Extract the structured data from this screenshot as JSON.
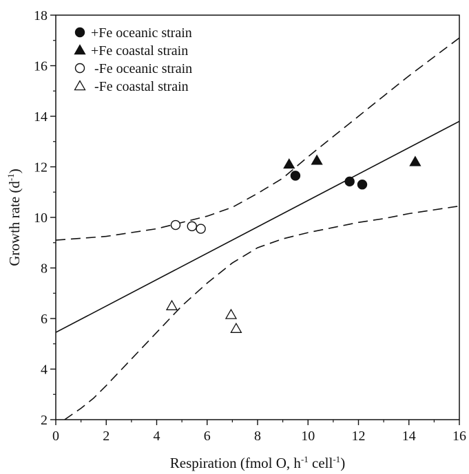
{
  "chart_data": {
    "type": "scatter",
    "xlabel": "Respiration (fmol O, h-1 cell-1)",
    "ylabel": "Growth rate (d-1)",
    "xlabel_parts": {
      "main": "Respiration (fmol O, h",
      "sup1": "-1",
      "mid": " cell",
      "sup2": "-1",
      "end": ")"
    },
    "ylabel_parts": {
      "main": "Growth rate (d",
      "sup": "-1",
      "end": ")"
    },
    "xlim": [
      0,
      16
    ],
    "ylim": [
      2,
      18
    ],
    "xticks": [
      0,
      2,
      4,
      6,
      8,
      10,
      12,
      14,
      16
    ],
    "yticks": [
      2,
      4,
      6,
      8,
      10,
      12,
      14,
      16,
      18
    ],
    "legend_position": "top-left",
    "grid": false,
    "series": [
      {
        "name": "+Fe oceanic strain",
        "marker": "circle",
        "filled": true,
        "points": [
          [
            9.5,
            11.65
          ],
          [
            11.65,
            11.42
          ],
          [
            12.15,
            11.3
          ]
        ]
      },
      {
        "name": "+Fe coastal strain",
        "marker": "triangle",
        "filled": true,
        "points": [
          [
            9.25,
            12.1
          ],
          [
            10.35,
            12.25
          ],
          [
            14.25,
            12.2
          ]
        ]
      },
      {
        "name": "-Fe oceanic strain",
        "marker": "circle",
        "filled": false,
        "points": [
          [
            4.75,
            9.7
          ],
          [
            5.4,
            9.65
          ],
          [
            5.75,
            9.55
          ]
        ]
      },
      {
        "name": "-Fe coastal strain",
        "marker": "triangle",
        "filled": false,
        "points": [
          [
            4.6,
            6.5
          ],
          [
            6.95,
            6.15
          ],
          [
            7.15,
            5.6
          ]
        ]
      }
    ],
    "regression_line": {
      "style": "solid",
      "points": [
        [
          0,
          5.45
        ],
        [
          16,
          13.8
        ]
      ]
    },
    "confidence_upper": {
      "style": "dashed",
      "points": [
        [
          0,
          9.1
        ],
        [
          2,
          9.25
        ],
        [
          4,
          9.55
        ],
        [
          6,
          10.05
        ],
        [
          7,
          10.4
        ],
        [
          8,
          10.95
        ],
        [
          9,
          11.55
        ],
        [
          10,
          12.4
        ],
        [
          11,
          13.2
        ],
        [
          12,
          14.0
        ],
        [
          13,
          14.8
        ],
        [
          14,
          15.6
        ],
        [
          15,
          16.35
        ],
        [
          16,
          17.1
        ]
      ]
    },
    "confidence_lower": {
      "style": "dashed",
      "points": [
        [
          0.35,
          2.0
        ],
        [
          1,
          2.45
        ],
        [
          1.5,
          2.85
        ],
        [
          2,
          3.35
        ],
        [
          3,
          4.4
        ],
        [
          4,
          5.45
        ],
        [
          5,
          6.5
        ],
        [
          6,
          7.4
        ],
        [
          7,
          8.2
        ],
        [
          8,
          8.8
        ],
        [
          9,
          9.15
        ],
        [
          10,
          9.4
        ],
        [
          11,
          9.6
        ],
        [
          12,
          9.8
        ],
        [
          13,
          9.95
        ],
        [
          14,
          10.15
        ],
        [
          15,
          10.3
        ],
        [
          16,
          10.45
        ]
      ]
    }
  }
}
